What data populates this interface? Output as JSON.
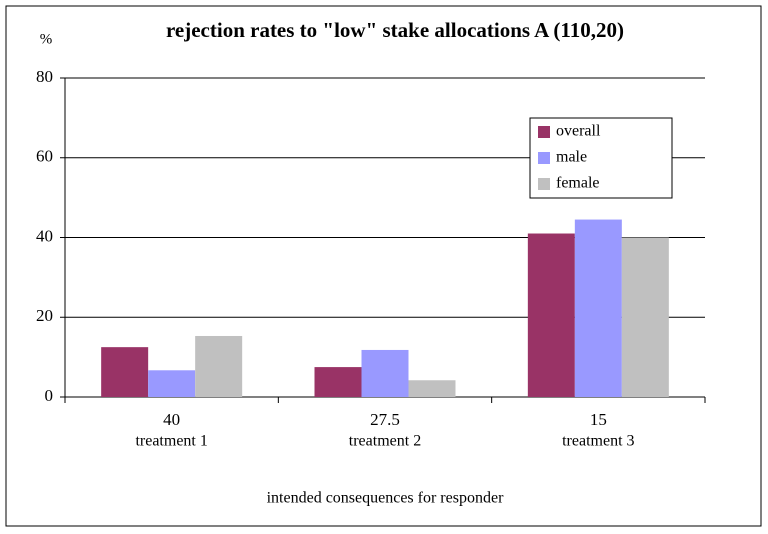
{
  "chart_data": {
    "type": "bar",
    "title": "rejection rates to \"low\" stake allocations A (110,20)",
    "y_label": "%",
    "x_label": "intended consequences for responder",
    "categories": [
      "40",
      "27.5",
      "15"
    ],
    "category_sublabels": [
      "treatment 1",
      "treatment 2",
      "treatment 3"
    ],
    "series": [
      {
        "name": "overall",
        "color": "#993366",
        "values": [
          12.5,
          7.5,
          41
        ]
      },
      {
        "name": "male",
        "color": "#9999ff",
        "values": [
          6.7,
          11.8,
          44.5
        ]
      },
      {
        "name": "female",
        "color": "#c0c0c0",
        "values": [
          15.3,
          4.2,
          40
        ]
      }
    ],
    "ylim": [
      0,
      80
    ],
    "yticks": [
      0,
      20,
      40,
      60,
      80
    ],
    "grid": true,
    "legend": "upper right"
  }
}
